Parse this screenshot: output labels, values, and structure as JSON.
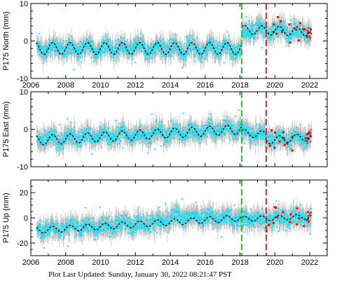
{
  "footer": {
    "text": "Plot Last Updated:   Sunday, January 30, 2022 08:21:47 PST"
  },
  "colors": {
    "data": "#00e5ff",
    "error_bars": "#b0b0b0",
    "recent": "#ff0000",
    "model": "#000000",
    "green_line": "#22bb22",
    "red_line": "#ee1111"
  },
  "chart_data": [
    {
      "type": "scatter",
      "ylabel": "P175 North (mm)",
      "xlim": [
        2006,
        2023
      ],
      "ylim": [
        -10,
        10
      ],
      "yticks": [
        -10,
        0,
        10
      ],
      "xticks": [
        2006,
        2008,
        2010,
        2012,
        2014,
        2016,
        2018,
        2020,
        2022
      ],
      "show_xtick_labels": true,
      "vlines": [
        {
          "x": 2018.1,
          "color": "green"
        },
        {
          "x": 2019.5,
          "color": "red"
        }
      ],
      "model": {
        "segments": [
          {
            "x0": 2006.3,
            "x1": 2018.1,
            "y0": -2.0,
            "y1": -2.0,
            "amp": 1.6
          },
          {
            "x0": 2018.1,
            "x1": 2022.1,
            "y0": 3.0,
            "y1": 2.5,
            "amp": 1.2
          }
        ]
      },
      "series": [
        {
          "name": "",
          "x": [
            2006.5,
            2007.0,
            2007.5,
            2008.0,
            2008.5,
            2009.0,
            2009.5,
            2010.0,
            2010.5,
            2011.0,
            2011.5,
            2012.0,
            2012.5,
            2013.0,
            2013.5,
            2014.0,
            2014.5,
            2015.0,
            2015.5,
            2016.0,
            2016.5,
            2017.0,
            2017.5,
            2018.0,
            2018.5,
            2019.0,
            2019.5,
            2020.0,
            2020.5,
            2021.0,
            2021.5,
            2022.0
          ],
          "y": [
            -2,
            -3,
            -1,
            -2,
            -3,
            -1,
            -2,
            -3,
            -1,
            -2,
            -3,
            -1,
            -2,
            -3,
            -1,
            -2,
            -3,
            -1,
            -2,
            -3,
            -1,
            -2,
            -3,
            -2,
            3,
            4,
            2,
            3,
            4,
            2,
            3,
            2
          ]
        }
      ]
    },
    {
      "type": "scatter",
      "ylabel": "P175 East (mm)",
      "xlim": [
        2006,
        2023
      ],
      "ylim": [
        -10,
        10
      ],
      "yticks": [
        -10,
        0,
        10
      ],
      "xticks": [
        2006,
        2008,
        2010,
        2012,
        2014,
        2016,
        2018,
        2020,
        2022
      ],
      "show_xtick_labels": false,
      "vlines": [
        {
          "x": 2018.1,
          "color": "green"
        },
        {
          "x": 2019.5,
          "color": "red"
        }
      ],
      "model": {
        "segments": [
          {
            "x0": 2006.3,
            "x1": 2018.1,
            "y0": -3.0,
            "y1": 0.0,
            "amp": 1.3
          },
          {
            "x0": 2018.1,
            "x1": 2019.5,
            "y0": -1.0,
            "y1": -1.5,
            "amp": 1.0
          },
          {
            "x0": 2019.5,
            "x1": 2022.1,
            "y0": -3.0,
            "y1": -2.0,
            "amp": 1.0
          }
        ]
      },
      "series": [
        {
          "name": "",
          "x": [
            2006.5,
            2007.0,
            2007.5,
            2008.0,
            2008.5,
            2009.0,
            2009.5,
            2010.0,
            2010.5,
            2011.0,
            2011.5,
            2012.0,
            2012.5,
            2013.0,
            2013.5,
            2014.0,
            2014.5,
            2015.0,
            2015.5,
            2016.0,
            2016.5,
            2017.0,
            2017.5,
            2018.0,
            2018.5,
            2019.0,
            2019.5,
            2020.0,
            2020.5,
            2021.0,
            2021.5,
            2022.0
          ],
          "y": [
            -3,
            -2,
            -3,
            -2,
            -2,
            -1,
            -2,
            -1,
            -2,
            -1,
            -1,
            -2,
            -1,
            -1,
            0,
            -1,
            -1,
            0,
            -1,
            0,
            0,
            1,
            0,
            0,
            -1,
            -2,
            -1,
            -3,
            -2,
            -3,
            -2,
            -2
          ]
        }
      ]
    },
    {
      "type": "scatter",
      "ylabel": "P175 Up (mm)",
      "xlim": [
        2006,
        2023
      ],
      "ylim": [
        -30,
        30
      ],
      "yticks": [
        -20,
        0,
        20
      ],
      "xticks": [
        2006,
        2008,
        2010,
        2012,
        2014,
        2016,
        2018,
        2020,
        2022
      ],
      "xtick_labels": [
        "2006",
        "2008",
        "2010",
        "2012",
        "2014",
        "2016",
        "2018",
        "2020",
        "2022"
      ],
      "show_xtick_labels": true,
      "vlines": [
        {
          "x": 2018.1,
          "color": "green"
        },
        {
          "x": 2019.5,
          "color": "red"
        }
      ],
      "model": {
        "segments": [
          {
            "x0": 2006.3,
            "x1": 2018.1,
            "y0": -10.0,
            "y1": 0.0,
            "amp": 2.5
          },
          {
            "x0": 2018.1,
            "x1": 2022.1,
            "y0": -1.0,
            "y1": 1.0,
            "amp": 2.0
          }
        ]
      },
      "series": [
        {
          "name": "",
          "x": [
            2006.5,
            2007.0,
            2007.5,
            2008.0,
            2008.5,
            2009.0,
            2009.5,
            2010.0,
            2010.5,
            2011.0,
            2011.5,
            2012.0,
            2012.5,
            2013.0,
            2013.5,
            2014.0,
            2014.5,
            2015.0,
            2015.5,
            2016.0,
            2016.5,
            2017.0,
            2017.5,
            2018.0,
            2018.5,
            2019.0,
            2019.5,
            2020.0,
            2020.5,
            2021.0,
            2021.5,
            2022.0
          ],
          "y": [
            -10,
            -8,
            -9,
            -7,
            -6,
            -7,
            -5,
            -7,
            -6,
            -4,
            -3,
            -4,
            -3,
            -2,
            -3,
            2,
            8,
            1,
            5,
            6,
            2,
            1,
            0,
            -2,
            -1,
            0,
            -2,
            0,
            -1,
            0,
            1,
            0
          ]
        }
      ]
    }
  ]
}
